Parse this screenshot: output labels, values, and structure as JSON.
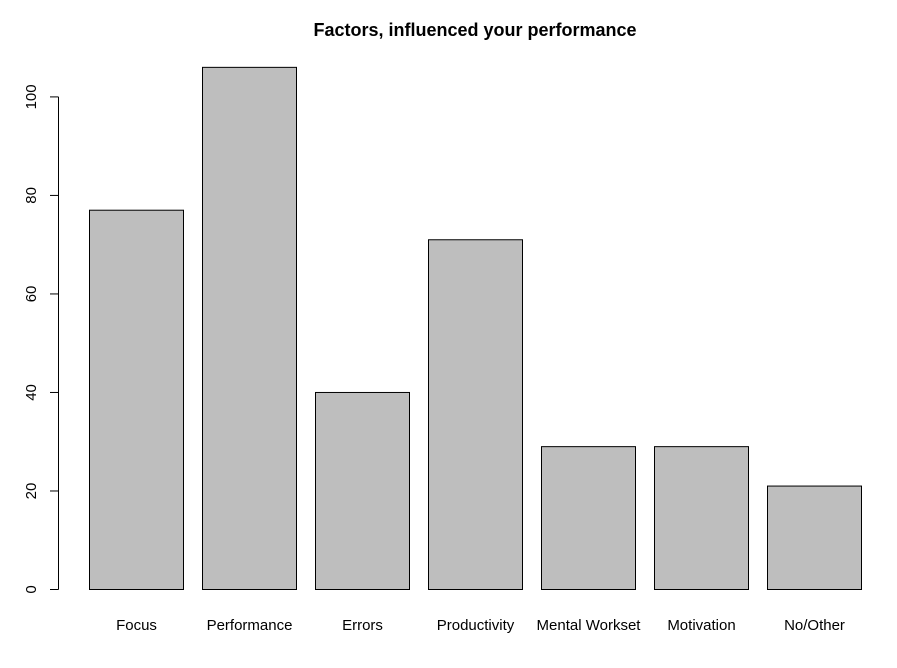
{
  "chart_data": {
    "type": "bar",
    "title": "Factors, influenced your performance",
    "xlabel": "",
    "ylabel": "",
    "categories": [
      "Focus",
      "Performance",
      "Errors",
      "Productivity",
      "Mental Workset",
      "Motivation",
      "No/Other"
    ],
    "values": [
      77,
      106,
      40,
      71,
      29,
      29,
      21
    ],
    "ylim": [
      0,
      108
    ],
    "yticks": [
      0,
      20,
      40,
      60,
      80,
      100
    ],
    "grid": false,
    "legend": "none",
    "bar_color": "#bebebe",
    "border_color": "#000000"
  }
}
